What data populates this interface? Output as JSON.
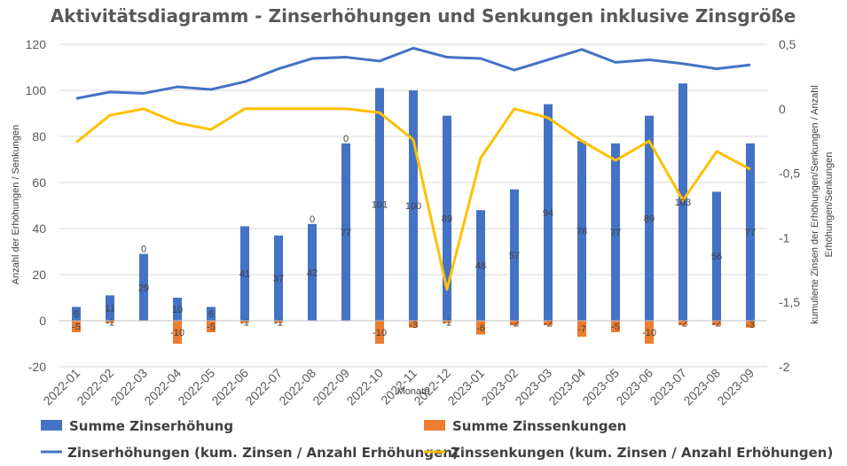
{
  "chart_data": {
    "type": "bar",
    "title": "Aktivitätsdiagramm - Zinserhöhungen und Senkungen inklusive Zinsgröße",
    "xlabel": "Monate",
    "ylabel": "Anzahl der Erhöhungen / Senkungen",
    "y2label_line1": "kumulierte Zinsen der Erhöhungen/Senkungen / Anzahl",
    "y2label_line2": "Erhöhungen/Senkungen",
    "ylim": [
      -20,
      120
    ],
    "y2lim": [
      -2,
      0.5
    ],
    "yticks": [
      "-20",
      "0",
      "20",
      "40",
      "60",
      "80",
      "100",
      "120"
    ],
    "y2ticks": [
      "-2",
      "-1,5",
      "-1",
      "-0,5",
      "0",
      "0,5"
    ],
    "categories": [
      "2022-01",
      "2022-02",
      "2022-03",
      "2022-04",
      "2022-05",
      "2022-06",
      "2022-07",
      "2022-08",
      "2022-09",
      "2022-10",
      "2022-11",
      "2022-12",
      "2023-01",
      "2023-02",
      "2023-03",
      "2023-04",
      "2023-05",
      "2023-06",
      "2023-07",
      "2023-08",
      "2023-09"
    ],
    "series": [
      {
        "name": "Summe Zinserhöhung",
        "type": "bar",
        "axis": "left",
        "color": "#4472C4",
        "values": [
          6,
          11,
          29,
          10,
          6,
          41,
          37,
          42,
          77,
          101,
          100,
          89,
          48,
          57,
          94,
          78,
          77,
          89,
          103,
          56,
          77
        ]
      },
      {
        "name": "Summe Zinssenkungen",
        "type": "bar",
        "axis": "left",
        "color": "#ED7D31",
        "values": [
          -5,
          -1,
          0,
          -10,
          -5,
          -1,
          -1,
          0,
          0,
          -10,
          -3,
          -1,
          -6,
          -2,
          -2,
          -7,
          -5,
          -10,
          -2,
          -2,
          -3
        ]
      },
      {
        "name": "Zinserhöhungen (kum. Zinsen / Anzahl Erhöhungen)",
        "type": "line",
        "axis": "right",
        "color": "#4472C4",
        "values": [
          0.08,
          0.13,
          0.12,
          0.17,
          0.15,
          0.21,
          0.31,
          0.39,
          0.4,
          0.37,
          0.47,
          0.4,
          0.39,
          0.3,
          0.38,
          0.46,
          0.36,
          0.38,
          0.35,
          0.31,
          0.34
        ]
      },
      {
        "name": "Zinssenkungen (kum. Zinsen / Anzahl Erhöhungen)",
        "type": "line",
        "axis": "right",
        "color": "#FFC000",
        "values": [
          -0.26,
          -0.05,
          0.0,
          -0.11,
          -0.16,
          0.0,
          0.0,
          0.0,
          0.0,
          -0.03,
          -0.24,
          -1.4,
          -0.38,
          0.0,
          -0.07,
          -0.25,
          -0.4,
          -0.25,
          -0.71,
          -0.33,
          -0.47
        ]
      }
    ],
    "bar_labels_up": [
      "6",
      "11",
      "29",
      "10",
      "6",
      "41",
      "37",
      "42",
      "77",
      "101",
      "100",
      "89",
      "48",
      "57",
      "94",
      "78",
      "77",
      "89",
      "103",
      "56",
      "77"
    ],
    "bar_labels_down": [
      "-5",
      "-1",
      "0",
      "-10",
      "-5",
      "-1",
      "-1",
      "0",
      "0",
      "-10",
      "-3",
      "-1",
      "-6",
      "-2",
      "-2",
      "-7",
      "-5",
      "-10",
      "-2",
      "-2",
      "-3"
    ],
    "grid": true,
    "legend_position": "bottom"
  }
}
